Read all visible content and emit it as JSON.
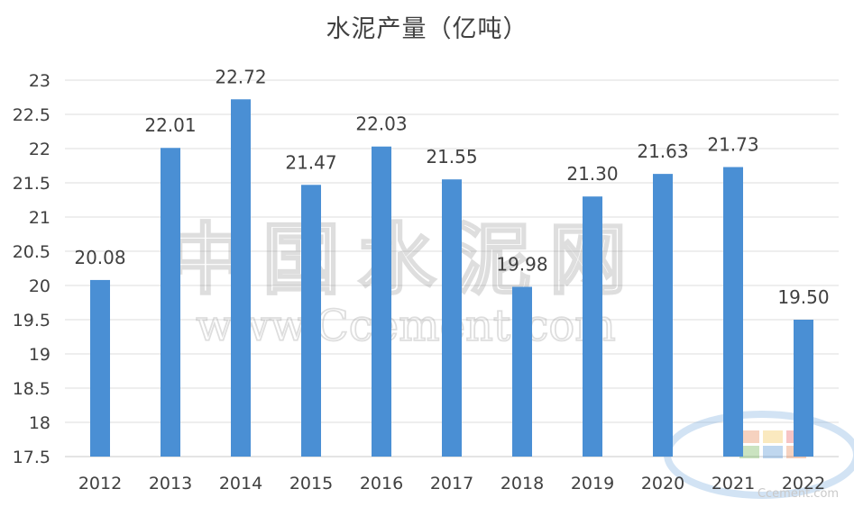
{
  "chart_data": {
    "type": "bar",
    "title": "水泥产量（亿吨）",
    "xlabel": "",
    "ylabel": "",
    "categories": [
      "2012",
      "2013",
      "2014",
      "2015",
      "2016",
      "2017",
      "2018",
      "2019",
      "2020",
      "2021",
      "2022"
    ],
    "values": [
      20.08,
      22.01,
      22.72,
      21.47,
      22.03,
      21.55,
      19.98,
      21.3,
      21.63,
      21.73,
      19.5
    ],
    "value_labels": [
      "20.08",
      "22.01",
      "22.72",
      "21.47",
      "22.03",
      "21.55",
      "19.98",
      "21.30",
      "21.63",
      "21.73",
      "19.50"
    ],
    "ylim": [
      17.5,
      23
    ],
    "y_ticks": [
      "17.5",
      "18",
      "18.5",
      "19",
      "19.5",
      "20",
      "20.5",
      "21",
      "21.5",
      "22",
      "22.5",
      "23"
    ],
    "grid": true,
    "legend": "none",
    "bar_color": "#4a8fd4"
  },
  "watermark": {
    "site_name": "中国水泥网",
    "site_url": "www.Ccement.com",
    "logo_url": "Ccement.com"
  }
}
